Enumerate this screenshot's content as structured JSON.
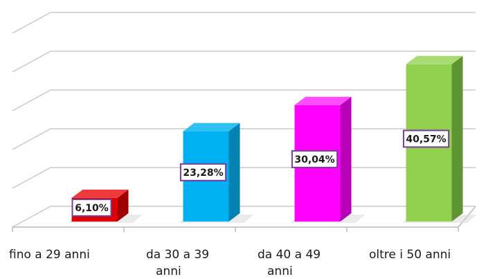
{
  "chart_data": {
    "type": "bar",
    "title": "",
    "xlabel": "",
    "ylabel": "",
    "ylim": [
      0,
      50
    ],
    "grid": true,
    "categories": [
      {
        "lines": [
          "fino a 29 anni"
        ]
      },
      {
        "lines": [
          "da 30 a 39",
          "anni"
        ]
      },
      {
        "lines": [
          "da 40 a 49",
          "anni"
        ]
      },
      {
        "lines": [
          "oltre i 50 anni"
        ]
      }
    ],
    "values": [
      6.1,
      23.28,
      30.04,
      40.57
    ],
    "data_labels": [
      "6,10%",
      "23,28%",
      "30,04%",
      "40,57%"
    ],
    "colors": [
      {
        "front": "#e00000",
        "side": "#a00000",
        "top": "#ee3a3a",
        "label_border": "#7b3b9a"
      },
      {
        "front": "#00b0f0",
        "side": "#0082b4",
        "top": "#2fc0f4",
        "label_border": "#7b3b9a"
      },
      {
        "front": "#ff00ff",
        "side": "#b800b8",
        "top": "#ff4cff",
        "label_border": "#7b3b9a"
      },
      {
        "front": "#92d050",
        "side": "#5f9333",
        "top": "#a8dc72",
        "label_border": "#7b3b9a"
      }
    ]
  }
}
